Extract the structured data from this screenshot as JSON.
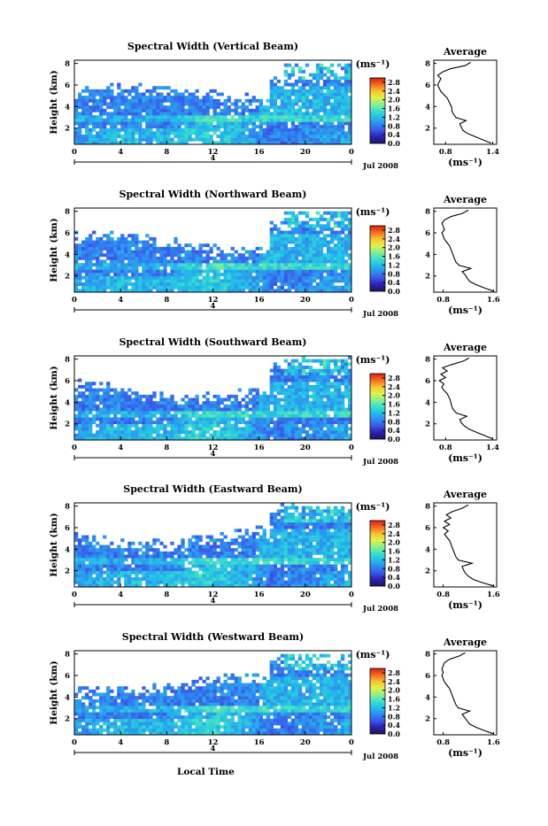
{
  "figure": {
    "xlabel": "Local Time",
    "date_label": "Jul 2008",
    "day_label": "4"
  },
  "chart_data": [
    {
      "type": "heatmap",
      "title": "Spectral Width (Vertical Beam)",
      "ylabel": "Height (km)",
      "x_ticks": [
        "0",
        "4",
        "8",
        "12",
        "16",
        "20",
        "0"
      ],
      "y_ticks": [
        "2",
        "4",
        "6",
        "8"
      ],
      "xlim": [
        0,
        24
      ],
      "ylim": [
        0.5,
        8.3
      ],
      "colorbar": {
        "unit": "(ms⁻¹)",
        "ticks": [
          "0.0",
          "0.4",
          "0.8",
          "1.2",
          "1.6",
          "2.0",
          "2.4",
          "2.8"
        ],
        "range": [
          0,
          3.0
        ]
      },
      "average_profile": {
        "title": "Average",
        "xlabel": "(ms⁻¹)",
        "x_ticks": [
          "0.8",
          "1.4"
        ],
        "xlim": [
          0.65,
          1.45
        ],
        "height_km": [
          0.6,
          0.9,
          1.2,
          1.5,
          1.8,
          2.1,
          2.4,
          2.7,
          3.0,
          3.3,
          3.6,
          3.9,
          4.2,
          4.5,
          4.8,
          5.1,
          5.4,
          5.7,
          6.0,
          6.3,
          6.6,
          6.9,
          7.2,
          7.5,
          7.8,
          8.1
        ],
        "width_ms": [
          1.38,
          1.28,
          1.18,
          1.08,
          1.02,
          1.0,
          0.98,
          1.06,
          0.93,
          0.9,
          0.88,
          0.88,
          0.86,
          0.84,
          0.82,
          0.78,
          0.74,
          0.72,
          0.7,
          0.72,
          0.74,
          0.7,
          0.76,
          0.86,
          1.05,
          1.12
        ]
      }
    },
    {
      "type": "heatmap",
      "title": "Spectral Width (Northward Beam)",
      "ylabel": "Height (km)",
      "x_ticks": [
        "0",
        "4",
        "8",
        "12",
        "16",
        "20",
        "0"
      ],
      "y_ticks": [
        "2",
        "4",
        "6",
        "8"
      ],
      "xlim": [
        0,
        24
      ],
      "ylim": [
        0.5,
        8.3
      ],
      "colorbar": {
        "unit": "(ms⁻¹)",
        "ticks": [
          "0.0",
          "0.4",
          "0.8",
          "1.2",
          "1.6",
          "2.0",
          "2.4",
          "2.8"
        ],
        "range": [
          0,
          3.0
        ]
      },
      "average_profile": {
        "title": "Average",
        "xlabel": "(ms⁻¹)",
        "x_ticks": [
          "0.8",
          "1.6"
        ],
        "xlim": [
          0.65,
          1.65
        ],
        "height_km": [
          0.6,
          0.9,
          1.2,
          1.5,
          1.8,
          2.1,
          2.4,
          2.7,
          3.0,
          3.3,
          3.6,
          3.9,
          4.2,
          4.5,
          4.8,
          5.1,
          5.4,
          5.7,
          6.0,
          6.3,
          6.6,
          6.9,
          7.2,
          7.5,
          7.8,
          8.1
        ],
        "width_ms": [
          1.6,
          1.45,
          1.32,
          1.22,
          1.18,
          1.15,
          1.1,
          1.24,
          1.05,
          1.0,
          0.98,
          0.96,
          0.94,
          0.92,
          0.9,
          0.86,
          0.82,
          0.8,
          0.78,
          0.82,
          0.8,
          0.78,
          0.82,
          0.92,
          1.1,
          1.2
        ]
      }
    },
    {
      "type": "heatmap",
      "title": "Spectral Width (Southward Beam)",
      "ylabel": "Height (km)",
      "x_ticks": [
        "0",
        "4",
        "8",
        "12",
        "16",
        "20",
        "0"
      ],
      "y_ticks": [
        "2",
        "4",
        "6",
        "8"
      ],
      "xlim": [
        0,
        24
      ],
      "ylim": [
        0.5,
        8.3
      ],
      "colorbar": {
        "unit": "(ms⁻¹)",
        "ticks": [
          "0.0",
          "0.4",
          "0.8",
          "1.2",
          "1.6",
          "2.0",
          "2.4",
          "2.8"
        ],
        "range": [
          0,
          3.0
        ]
      },
      "average_profile": {
        "title": "Average",
        "xlabel": "(ms⁻¹)",
        "x_ticks": [
          "0.8",
          "1.4"
        ],
        "xlim": [
          0.65,
          1.45
        ],
        "height_km": [
          0.6,
          0.9,
          1.2,
          1.5,
          1.8,
          2.1,
          2.4,
          2.7,
          3.0,
          3.3,
          3.6,
          3.9,
          4.2,
          4.5,
          4.8,
          5.1,
          5.4,
          5.7,
          6.0,
          6.3,
          6.6,
          6.9,
          7.2,
          7.5,
          7.8,
          8.1
        ],
        "width_ms": [
          1.4,
          1.3,
          1.2,
          1.1,
          1.04,
          1.0,
          0.98,
          1.07,
          0.94,
          0.9,
          0.88,
          0.87,
          0.86,
          0.84,
          0.82,
          0.78,
          0.75,
          0.78,
          0.72,
          0.8,
          0.74,
          0.82,
          0.76,
          0.88,
          1.02,
          1.1
        ]
      }
    },
    {
      "type": "heatmap",
      "title": "Spectral Width (Eastward Beam)",
      "ylabel": "Height (km)",
      "x_ticks": [
        "0",
        "4",
        "8",
        "12",
        "16",
        "20",
        "0"
      ],
      "y_ticks": [
        "2",
        "4",
        "6",
        "8"
      ],
      "xlim": [
        0,
        24
      ],
      "ylim": [
        0.5,
        8.3
      ],
      "colorbar": {
        "unit": "(ms⁻¹)",
        "ticks": [
          "0.0",
          "0.4",
          "0.8",
          "1.2",
          "1.6",
          "2.0",
          "2.4",
          "2.8"
        ],
        "range": [
          0,
          3.0
        ]
      },
      "average_profile": {
        "title": "Average",
        "xlabel": "(ms⁻¹)",
        "x_ticks": [
          "0.8",
          "1.6"
        ],
        "xlim": [
          0.65,
          1.65
        ],
        "height_km": [
          0.6,
          0.9,
          1.2,
          1.5,
          1.8,
          2.1,
          2.4,
          2.7,
          3.0,
          3.3,
          3.6,
          3.9,
          4.2,
          4.5,
          4.8,
          5.1,
          5.4,
          5.7,
          6.0,
          6.3,
          6.6,
          6.9,
          7.2,
          7.5,
          7.8,
          8.1
        ],
        "width_ms": [
          1.6,
          1.42,
          1.28,
          1.2,
          1.15,
          1.12,
          1.1,
          1.26,
          1.04,
          1.0,
          0.98,
          0.96,
          0.94,
          0.92,
          0.9,
          0.86,
          0.82,
          0.88,
          0.8,
          0.9,
          0.82,
          0.92,
          0.85,
          0.95,
          1.1,
          1.2
        ]
      }
    },
    {
      "type": "heatmap",
      "title": "Spectral Width (Westward Beam)",
      "ylabel": "Height (km)",
      "x_ticks": [
        "0",
        "4",
        "8",
        "12",
        "16",
        "20",
        "0"
      ],
      "y_ticks": [
        "2",
        "4",
        "6",
        "8"
      ],
      "xlim": [
        0,
        24
      ],
      "ylim": [
        0.5,
        8.3
      ],
      "colorbar": {
        "unit": "(ms⁻¹)",
        "ticks": [
          "0.0",
          "0.4",
          "0.8",
          "1.2",
          "1.6",
          "2.0",
          "2.4",
          "2.8"
        ],
        "range": [
          0,
          3.0
        ]
      },
      "average_profile": {
        "title": "Average",
        "xlabel": "(ms⁻¹)",
        "x_ticks": [
          "0.8",
          "1.6"
        ],
        "xlim": [
          0.65,
          1.65
        ],
        "height_km": [
          0.6,
          0.9,
          1.2,
          1.5,
          1.8,
          2.1,
          2.4,
          2.7,
          3.0,
          3.3,
          3.6,
          3.9,
          4.2,
          4.5,
          4.8,
          5.1,
          5.4,
          5.7,
          6.0,
          6.3,
          6.6,
          6.9,
          7.2,
          7.5,
          7.8,
          8.1
        ],
        "width_ms": [
          1.6,
          1.45,
          1.32,
          1.22,
          1.18,
          1.14,
          1.1,
          1.22,
          1.04,
          1.0,
          0.98,
          0.96,
          0.94,
          0.92,
          0.9,
          0.86,
          0.82,
          0.8,
          0.78,
          0.8,
          0.78,
          0.8,
          0.82,
          0.9,
          1.05,
          1.15
        ]
      }
    }
  ]
}
